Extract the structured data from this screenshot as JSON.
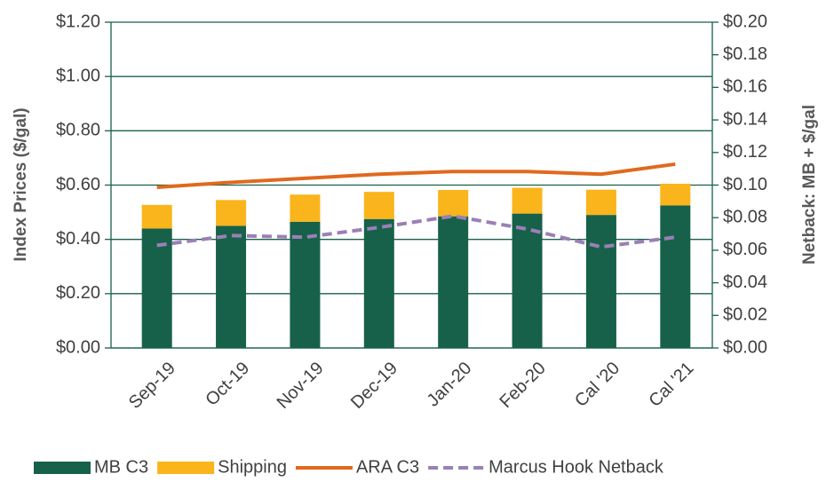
{
  "chart_data": {
    "type": "bar",
    "stacked": true,
    "grid": true,
    "legend": "bottom",
    "ylabel": "Index Prices ($/gal)",
    "y2label": "Netback: MB + $/gal",
    "categories": [
      "Sep-19",
      "Oct-19",
      "Nov-19",
      "Dec-19",
      "Jan-20",
      "Feb-20",
      "Cal '20",
      "Cal '21"
    ],
    "series": [
      {
        "name": "MB C3",
        "type": "bar",
        "color": "#17614a",
        "values": [
          0.44,
          0.45,
          0.465,
          0.475,
          0.485,
          0.495,
          0.49,
          0.525
        ]
      },
      {
        "name": "Shipping",
        "type": "bar",
        "color": "#f9b51b",
        "values": [
          0.087,
          0.095,
          0.1,
          0.1,
          0.097,
          0.095,
          0.093,
          0.08
        ]
      },
      {
        "name": "ARA C3",
        "type": "line",
        "color": "#e0691e",
        "values": [
          0.592,
          0.61,
          0.625,
          0.64,
          0.65,
          0.65,
          0.64,
          0.677
        ]
      },
      {
        "name": "Marcus Hook Netback",
        "type": "line",
        "dashed": true,
        "axis": "y2",
        "color": "#9a80b6",
        "values": [
          0.063,
          0.069,
          0.068,
          0.074,
          0.081,
          0.073,
          0.062,
          0.068
        ]
      }
    ],
    "ylim": [
      0,
      1.2
    ],
    "yticks": [
      {
        "value": 0,
        "label": "$0.00"
      },
      {
        "value": 0.2,
        "label": "$0.20"
      },
      {
        "value": 0.4,
        "label": "$0.40"
      },
      {
        "value": 0.6,
        "label": "$0.60"
      },
      {
        "value": 0.8,
        "label": "$0.80"
      },
      {
        "value": 1.0,
        "label": "$1.00"
      },
      {
        "value": 1.2,
        "label": "$1.20"
      }
    ],
    "y2lim": [
      0,
      0.2
    ],
    "y2ticks": [
      {
        "value": 0,
        "label": "$0.00"
      },
      {
        "value": 0.02,
        "label": "$0.02"
      },
      {
        "value": 0.04,
        "label": "$0.04"
      },
      {
        "value": 0.06,
        "label": "$0.06"
      },
      {
        "value": 0.08,
        "label": "$0.08"
      },
      {
        "value": 0.1,
        "label": "$0.10"
      },
      {
        "value": 0.12,
        "label": "$0.12"
      },
      {
        "value": 0.14,
        "label": "$0.14"
      },
      {
        "value": 0.16,
        "label": "$0.16"
      },
      {
        "value": 0.18,
        "label": "$0.18"
      },
      {
        "value": 0.2,
        "label": "$0.20"
      }
    ]
  }
}
